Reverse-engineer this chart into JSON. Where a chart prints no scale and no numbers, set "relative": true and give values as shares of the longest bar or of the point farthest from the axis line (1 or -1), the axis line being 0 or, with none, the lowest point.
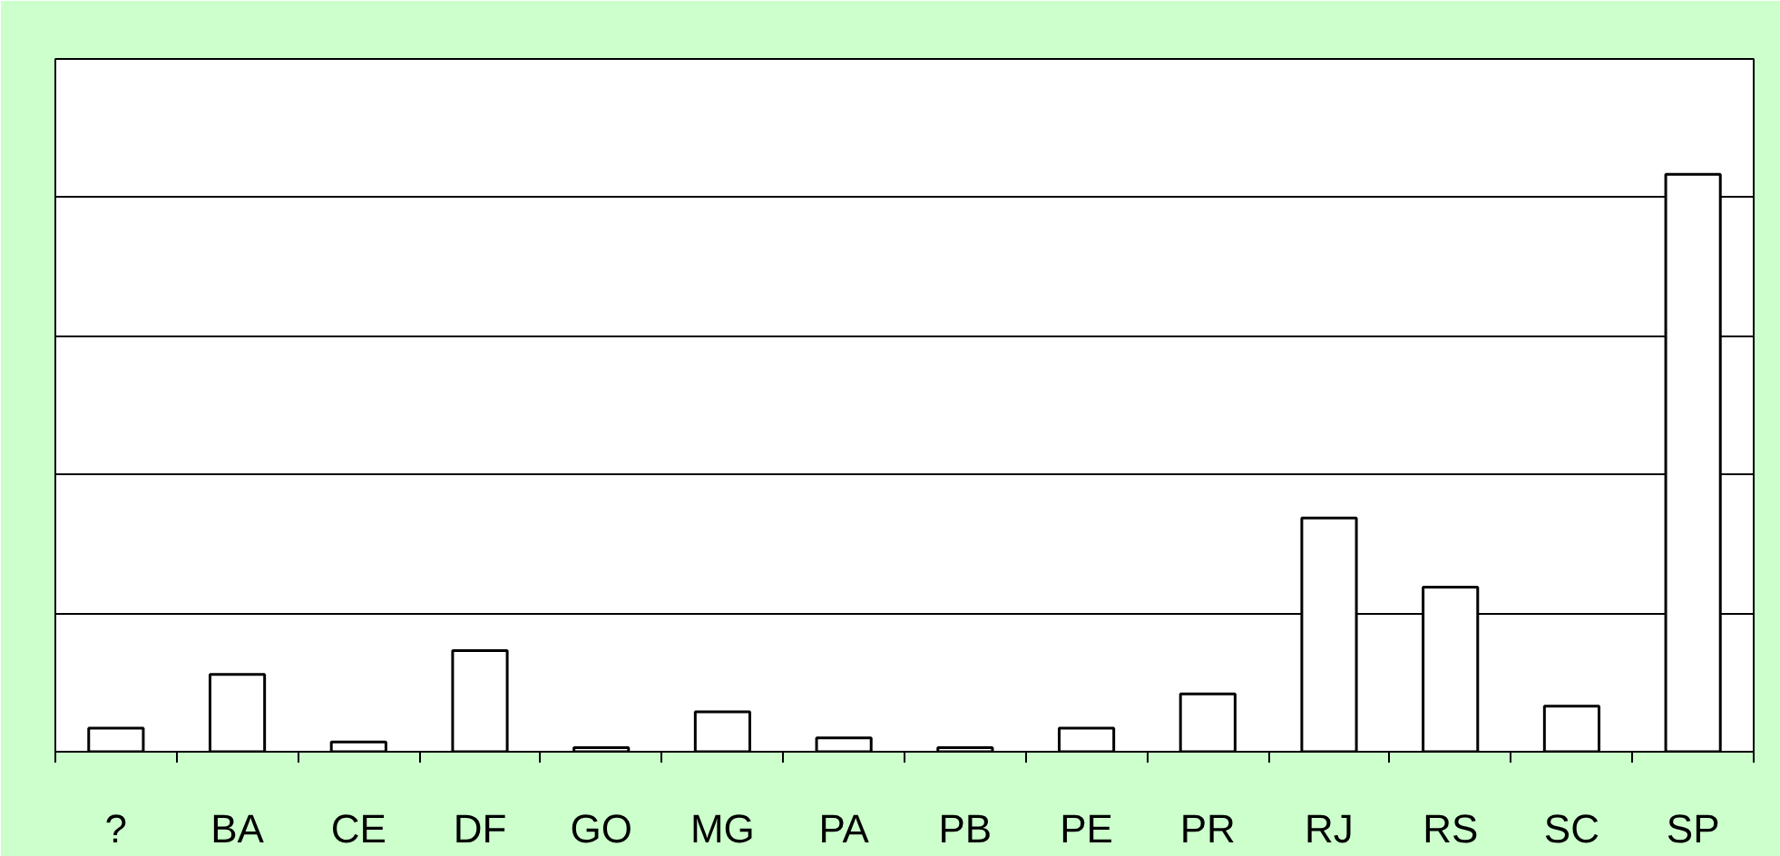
{
  "chart_data": {
    "type": "bar",
    "relative": true,
    "grid": "y",
    "categories": [
      "?",
      "BA",
      "CE",
      "DF",
      "GO",
      "MG",
      "PA",
      "PB",
      "PE",
      "PR",
      "RJ",
      "RS",
      "SC",
      "SP"
    ],
    "values": [
      0.041,
      0.134,
      0.017,
      0.175,
      0.007,
      0.069,
      0.024,
      0.007,
      0.041,
      0.1,
      0.405,
      0.285,
      0.079,
      1
    ],
    "color": "#ffffff"
  }
}
